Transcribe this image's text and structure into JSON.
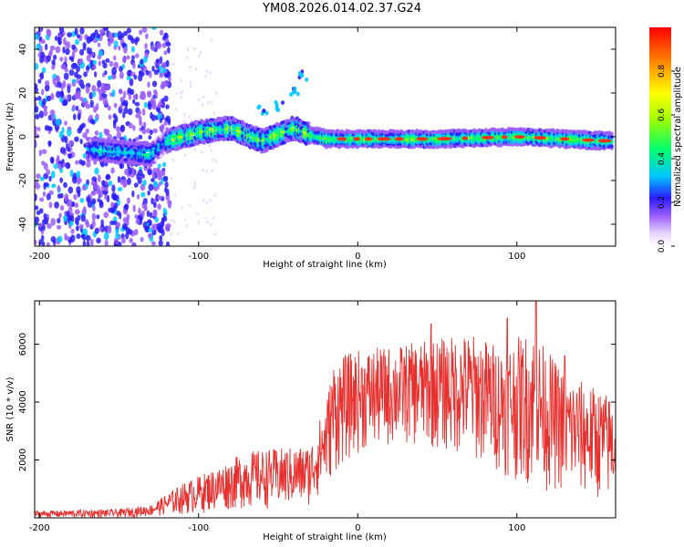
{
  "title": "YM08.2026.014.02.37.G24",
  "chart_data": [
    {
      "type": "heatmap",
      "xlabel": "Height of straight line (km)",
      "ylabel": "Frequency (Hz)",
      "xlim": [
        -203,
        162
      ],
      "ylim": [
        -50,
        50
      ],
      "xticks": [
        -200,
        -100,
        0,
        100
      ],
      "yticks": [
        -40,
        -20,
        0,
        20,
        40
      ],
      "colorbar": {
        "label": "Normalized spectral amplitude",
        "range": [
          0,
          1
        ],
        "ticks": [
          0.0,
          0.2,
          0.4,
          0.6,
          0.8
        ]
      },
      "ridge": {
        "description_points": [
          {
            "x": -165,
            "y": -6
          },
          {
            "x": -130,
            "y": -8
          },
          {
            "x": -120,
            "y": -2
          },
          {
            "x": -100,
            "y": 2
          },
          {
            "x": -80,
            "y": 4
          },
          {
            "x": -60,
            "y": -2
          },
          {
            "x": -40,
            "y": 4
          },
          {
            "x": -30,
            "y": 1
          },
          {
            "x": -20,
            "y": -1
          },
          {
            "x": 0,
            "y": -1
          },
          {
            "x": 50,
            "y": -1
          },
          {
            "x": 100,
            "y": 0
          },
          {
            "x": 160,
            "y": -2
          }
        ],
        "secondary_branch": [
          {
            "x": -60,
            "y": 12
          },
          {
            "x": -50,
            "y": 14
          },
          {
            "x": -40,
            "y": 20
          },
          {
            "x": -35,
            "y": 28
          }
        ]
      }
    },
    {
      "type": "line",
      "xlabel": "Height of straight line (km)",
      "ylabel": "SNR (10 * v/v)",
      "xlim": [
        -203,
        162
      ],
      "ylim": [
        0,
        7500
      ],
      "xticks": [
        -200,
        -100,
        0,
        100
      ],
      "yticks": [
        2000,
        4000,
        6000
      ],
      "color": "#e8312f",
      "envelope": [
        {
          "x": -200,
          "low": 0,
          "high": 250
        },
        {
          "x": -150,
          "low": 0,
          "high": 300
        },
        {
          "x": -130,
          "low": 50,
          "high": 450
        },
        {
          "x": -110,
          "low": 100,
          "high": 1200
        },
        {
          "x": -90,
          "low": 200,
          "high": 1700
        },
        {
          "x": -70,
          "low": 300,
          "high": 2300
        },
        {
          "x": -50,
          "low": 300,
          "high": 2400
        },
        {
          "x": -30,
          "low": 400,
          "high": 2500
        },
        {
          "x": -20,
          "low": 1000,
          "high": 4000
        },
        {
          "x": -15,
          "low": 1500,
          "high": 5500
        },
        {
          "x": 0,
          "low": 2200,
          "high": 5800
        },
        {
          "x": 30,
          "low": 2500,
          "high": 6000
        },
        {
          "x": 50,
          "low": 2300,
          "high": 6200
        },
        {
          "x": 70,
          "low": 2000,
          "high": 6400
        },
        {
          "x": 90,
          "low": 1500,
          "high": 6000
        },
        {
          "x": 110,
          "low": 1000,
          "high": 6500
        },
        {
          "x": 130,
          "low": 800,
          "high": 5000
        },
        {
          "x": 150,
          "low": 600,
          "high": 4500
        },
        {
          "x": 160,
          "low": 500,
          "high": 4200
        }
      ],
      "peaks": [
        {
          "x": 94,
          "y": 6900
        },
        {
          "x": 112,
          "y": 7500
        },
        {
          "x": 130,
          "y": 5600
        },
        {
          "x": 46,
          "y": 6700
        }
      ]
    }
  ]
}
